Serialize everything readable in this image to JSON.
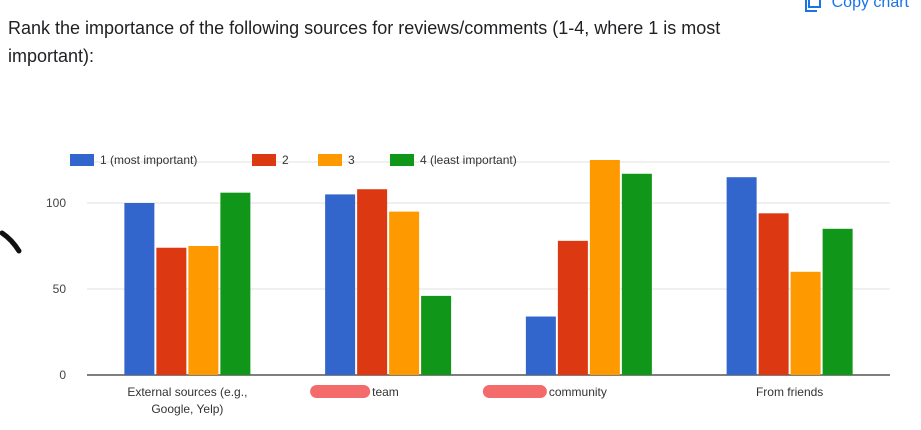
{
  "header": {
    "question": "Rank the importance of the following sources for reviews/comments (1-4, where 1 is most important):",
    "copy_label": "Copy chart",
    "copy_icon": "copy-icon"
  },
  "colors": {
    "series": [
      "#3366cc",
      "#dc3912",
      "#ff9900",
      "#109618"
    ],
    "grid": "#e0e0e0",
    "axis": "#333333",
    "redaction": "#f46b6b"
  },
  "chart_data": {
    "type": "bar",
    "title": "",
    "xlabel": "",
    "ylabel": "",
    "ylim": [
      0,
      125
    ],
    "yticks": [
      0,
      50,
      100
    ],
    "grid": true,
    "legend_position": "top-left",
    "categories": [
      [
        "External sources (e.g.,",
        "Google, Yelp)"
      ],
      [
        "team"
      ],
      [
        "community"
      ],
      [
        "From friends"
      ]
    ],
    "series": [
      {
        "name": "1 (most important)",
        "values": [
          100,
          105,
          34,
          115
        ]
      },
      {
        "name": "2",
        "values": [
          74,
          108,
          78,
          94
        ]
      },
      {
        "name": "3",
        "values": [
          75,
          95,
          125,
          60
        ]
      },
      {
        "name": "4 (least important)",
        "values": [
          106,
          46,
          117,
          85
        ]
      }
    ]
  }
}
